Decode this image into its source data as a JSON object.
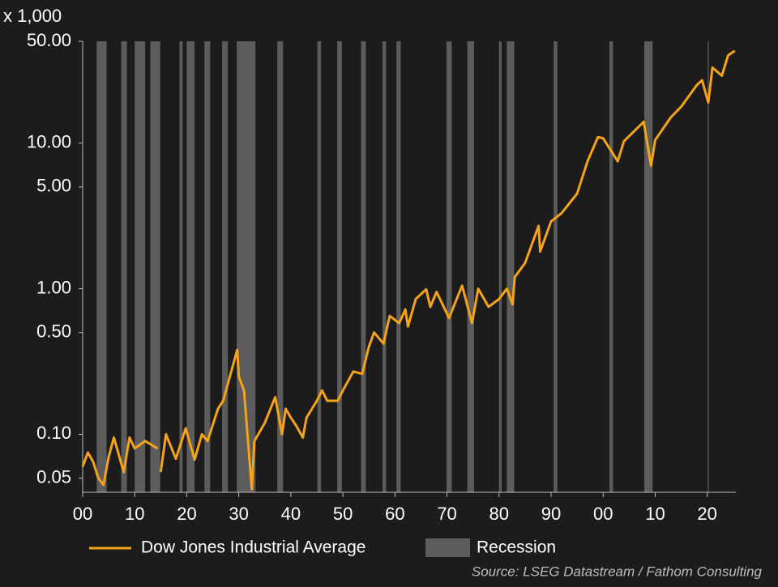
{
  "chart_data": {
    "type": "line",
    "y_label": "x 1,000",
    "source": "Source: LSEG Datastream / Fathom Consulting",
    "y_scale": "log",
    "legend": "bottom",
    "xlim": [
      1900,
      2025.5
    ],
    "ylim": [
      0.04,
      50
    ],
    "xticks": [
      {
        "value": 1900,
        "label": "00"
      },
      {
        "value": 1910,
        "label": "10"
      },
      {
        "value": 1920,
        "label": "20"
      },
      {
        "value": 1930,
        "label": "30"
      },
      {
        "value": 1940,
        "label": "40"
      },
      {
        "value": 1950,
        "label": "50"
      },
      {
        "value": 1960,
        "label": "60"
      },
      {
        "value": 1970,
        "label": "70"
      },
      {
        "value": 1980,
        "label": "80"
      },
      {
        "value": 1990,
        "label": "90"
      },
      {
        "value": 2000,
        "label": "00"
      },
      {
        "value": 2010,
        "label": "10"
      },
      {
        "value": 2020,
        "label": "20"
      }
    ],
    "yticks": [
      {
        "value": 0.05,
        "label": "0.05"
      },
      {
        "value": 0.1,
        "label": "0.10"
      },
      {
        "value": 0.5,
        "label": "0.50"
      },
      {
        "value": 1,
        "label": "1.00"
      },
      {
        "value": 5,
        "label": "5.00"
      },
      {
        "value": 10,
        "label": "10.00"
      },
      {
        "value": 50,
        "label": "50.00"
      }
    ],
    "x": [
      1900,
      1901,
      1902,
      1903,
      1904,
      1905,
      1906,
      1907.9,
      1909,
      1910,
      1912,
      1914.4,
      1914.7,
      1915,
      1916,
      1917.9,
      1919.8,
      1921.5,
      1922.9,
      1924,
      1926,
      1927,
      1929.7,
      1930,
      1931,
      1932.5,
      1933,
      1935,
      1937,
      1938.3,
      1939,
      1940,
      1941,
      1942.3,
      1943,
      1945,
      1946,
      1947,
      1949,
      1950,
      1952,
      1953.7,
      1955,
      1956,
      1957.8,
      1959,
      1960.8,
      1962,
      1962.5,
      1964,
      1966,
      1966.8,
      1968,
      1970.4,
      1972.9,
      1974.8,
      1976,
      1978,
      1980,
      1981.5,
      1982.6,
      1983,
      1985,
      1987.6,
      1987.9,
      1990,
      1992,
      1995,
      1997,
      1999,
      2000,
      2002.8,
      2004,
      2007.8,
      2009.2,
      2010,
      2013,
      2015,
      2018,
      2019,
      2020.2,
      2021,
      2022.8,
      2024,
      2025.3
    ],
    "series": [
      {
        "name": "Dow Jones Industrial Average",
        "color": "#f5a31a",
        "values": [
          0.06,
          0.075,
          0.065,
          0.05,
          0.045,
          0.07,
          0.095,
          0.055,
          0.095,
          0.08,
          0.09,
          0.08,
          null,
          0.055,
          0.1,
          0.068,
          0.11,
          0.067,
          0.1,
          0.09,
          0.15,
          0.17,
          0.38,
          0.25,
          0.2,
          0.042,
          0.09,
          0.12,
          0.18,
          0.1,
          0.15,
          0.13,
          0.115,
          0.095,
          0.13,
          0.17,
          0.2,
          0.17,
          0.17,
          0.2,
          0.27,
          0.26,
          0.4,
          0.5,
          0.42,
          0.65,
          0.58,
          0.72,
          0.55,
          0.85,
          0.99,
          0.75,
          0.95,
          0.63,
          1.05,
          0.58,
          1.0,
          0.75,
          0.85,
          1.0,
          0.78,
          1.2,
          1.5,
          2.7,
          1.8,
          2.9,
          3.3,
          4.5,
          7.5,
          11.0,
          10.8,
          7.5,
          10.3,
          14,
          7.0,
          10.5,
          15,
          17.8,
          25,
          27,
          19,
          33,
          29,
          40,
          43
        ]
      }
    ],
    "recessions": {
      "name": "Recession",
      "color": "#5c5c5c",
      "periods": [
        [
          1902.7,
          1904.6
        ],
        [
          1907.4,
          1908.5
        ],
        [
          1910,
          1912
        ],
        [
          1913,
          1914.9
        ],
        [
          1918.6,
          1919.2
        ],
        [
          1920,
          1921.5
        ],
        [
          1923.4,
          1924.5
        ],
        [
          1926.8,
          1927.9
        ],
        [
          1929.6,
          1933.2
        ],
        [
          1937.4,
          1938.5
        ],
        [
          1945.1,
          1945.8
        ],
        [
          1948.9,
          1949.8
        ],
        [
          1953.5,
          1954.4
        ],
        [
          1957.6,
          1958.3
        ],
        [
          1960.3,
          1961.1
        ],
        [
          1969.9,
          1970.9
        ],
        [
          1973.9,
          1975.2
        ],
        [
          1980,
          1980.5
        ],
        [
          1981.5,
          1982.9
        ],
        [
          1990.5,
          1991.2
        ],
        [
          2001.2,
          2001.9
        ],
        [
          2007.9,
          2009.5
        ],
        [
          2020.1,
          2020.3
        ]
      ]
    }
  }
}
